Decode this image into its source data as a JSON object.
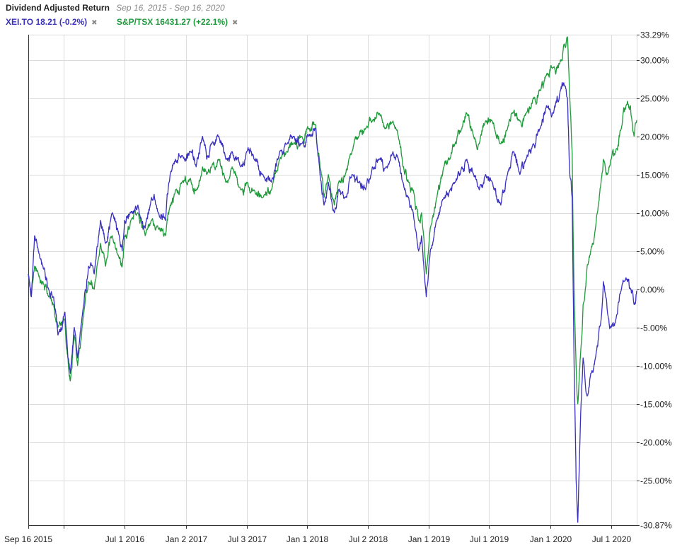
{
  "header": {
    "title": "Dividend Adjusted Return",
    "date_range": "Sep 16, 2015 - Sep 16, 2020",
    "close_icon": "close-x-icon"
  },
  "colors": {
    "xei": "#3a30c0",
    "tsx": "#1f9a3a",
    "grid": "#dcdcdc",
    "axis": "#333333",
    "text": "#222222"
  },
  "chart_data": {
    "type": "line",
    "title": "Dividend Adjusted Return",
    "subtitle": "Sep 16, 2015 - Sep 16, 2020",
    "xlabel": "",
    "ylabel": "",
    "xlim": [
      "2015-09-16",
      "2020-09-16"
    ],
    "ylim": [
      -30.87,
      33.29
    ],
    "grid": true,
    "legend_position": "top-left",
    "x_tick_labels": [
      {
        "date": "2015-09-16",
        "label": "Sep 16 2015"
      },
      {
        "date": "2016-01-01",
        "label": ""
      },
      {
        "date": "2016-07-01",
        "label": "Jul 1 2016"
      },
      {
        "date": "2017-01-02",
        "label": "Jan 2 2017"
      },
      {
        "date": "2017-07-03",
        "label": "Jul 3 2017"
      },
      {
        "date": "2018-01-01",
        "label": "Jan 1 2018"
      },
      {
        "date": "2018-07-02",
        "label": "Jul 2 2018"
      },
      {
        "date": "2019-01-01",
        "label": "Jan 1 2019"
      },
      {
        "date": "2019-07-01",
        "label": "Jul 1 2019"
      },
      {
        "date": "2020-01-01",
        "label": "Jan 1 2020"
      },
      {
        "date": "2020-07-01",
        "label": "Jul 1 2020"
      }
    ],
    "y_tick_labels": [
      {
        "value": 33.29,
        "label": "33.29%"
      },
      {
        "value": 30,
        "label": "30.00%"
      },
      {
        "value": 25,
        "label": "25.00%"
      },
      {
        "value": 20,
        "label": "20.00%"
      },
      {
        "value": 15,
        "label": "15.00%"
      },
      {
        "value": 10,
        "label": "10.00%"
      },
      {
        "value": 5,
        "label": "5.00%"
      },
      {
        "value": 0,
        "label": "0.00%"
      },
      {
        "value": -5,
        "label": "-5.00%"
      },
      {
        "value": -10,
        "label": "-10.00%"
      },
      {
        "value": -15,
        "label": "-15.00%"
      },
      {
        "value": -20,
        "label": "-20.00%"
      },
      {
        "value": -25,
        "label": "-25.00%"
      },
      {
        "value": -30.87,
        "label": "-30.87%"
      }
    ],
    "series": [
      {
        "name": "XEI.TO",
        "legend_label": "XEI.TO 18.21 (-0.2%)",
        "color": "#3a30c0",
        "points": [
          [
            "2015-09-16",
            2
          ],
          [
            "2015-09-25",
            -1
          ],
          [
            "2015-10-05",
            7
          ],
          [
            "2015-10-16",
            5
          ],
          [
            "2015-10-30",
            3
          ],
          [
            "2015-11-16",
            0
          ],
          [
            "2015-12-01",
            -1
          ],
          [
            "2015-12-14",
            -6
          ],
          [
            "2016-01-04",
            -3
          ],
          [
            "2016-01-13",
            -9
          ],
          [
            "2016-01-20",
            -11
          ],
          [
            "2016-02-01",
            -5
          ],
          [
            "2016-02-11",
            -9
          ],
          [
            "2016-03-01",
            -2
          ],
          [
            "2016-03-15",
            3
          ],
          [
            "2016-04-01",
            2
          ],
          [
            "2016-04-20",
            9
          ],
          [
            "2016-05-05",
            6
          ],
          [
            "2016-05-25",
            10
          ],
          [
            "2016-06-15",
            7
          ],
          [
            "2016-06-24",
            5
          ],
          [
            "2016-07-01",
            9
          ],
          [
            "2016-07-20",
            10
          ],
          [
            "2016-08-10",
            11
          ],
          [
            "2016-09-01",
            8
          ],
          [
            "2016-09-20",
            12
          ],
          [
            "2016-10-10",
            10
          ],
          [
            "2016-11-01",
            9
          ],
          [
            "2016-11-15",
            15
          ],
          [
            "2016-12-01",
            17
          ],
          [
            "2016-12-20",
            17.5
          ],
          [
            "2017-01-15",
            18
          ],
          [
            "2017-02-01",
            16
          ],
          [
            "2017-02-20",
            20
          ],
          [
            "2017-03-05",
            17
          ],
          [
            "2017-03-20",
            19
          ],
          [
            "2017-04-10",
            20
          ],
          [
            "2017-05-01",
            17
          ],
          [
            "2017-05-20",
            18
          ],
          [
            "2017-06-15",
            16
          ],
          [
            "2017-07-03",
            18
          ],
          [
            "2017-07-25",
            17
          ],
          [
            "2017-08-20",
            15
          ],
          [
            "2017-09-15",
            14
          ],
          [
            "2017-10-10",
            18
          ],
          [
            "2017-11-01",
            19
          ],
          [
            "2017-11-20",
            20
          ],
          [
            "2017-12-15",
            19
          ],
          [
            "2018-01-05",
            20
          ],
          [
            "2018-01-26",
            21
          ],
          [
            "2018-02-08",
            15
          ],
          [
            "2018-02-20",
            11
          ],
          [
            "2018-03-05",
            14
          ],
          [
            "2018-03-23",
            10
          ],
          [
            "2018-04-05",
            13
          ],
          [
            "2018-04-25",
            12
          ],
          [
            "2018-05-15",
            15
          ],
          [
            "2018-06-05",
            14
          ],
          [
            "2018-06-25",
            13
          ],
          [
            "2018-07-15",
            16
          ],
          [
            "2018-08-05",
            17
          ],
          [
            "2018-08-25",
            16
          ],
          [
            "2018-09-15",
            18
          ],
          [
            "2018-10-01",
            17
          ],
          [
            "2018-10-15",
            14
          ],
          [
            "2018-11-01",
            12
          ],
          [
            "2018-11-15",
            10
          ],
          [
            "2018-12-01",
            5
          ],
          [
            "2018-12-10",
            7
          ],
          [
            "2018-12-24",
            -1
          ],
          [
            "2019-01-05",
            5
          ],
          [
            "2019-01-25",
            9
          ],
          [
            "2019-02-15",
            12
          ],
          [
            "2019-03-05",
            13
          ],
          [
            "2019-03-20",
            14
          ],
          [
            "2019-04-10",
            16
          ],
          [
            "2019-04-25",
            17
          ],
          [
            "2019-05-15",
            15
          ],
          [
            "2019-06-01",
            13
          ],
          [
            "2019-06-20",
            15
          ],
          [
            "2019-07-10",
            14
          ],
          [
            "2019-08-05",
            11
          ],
          [
            "2019-08-25",
            15
          ],
          [
            "2019-09-10",
            18
          ],
          [
            "2019-10-01",
            15
          ],
          [
            "2019-10-20",
            17
          ],
          [
            "2019-11-10",
            19
          ],
          [
            "2019-12-01",
            21
          ],
          [
            "2019-12-20",
            24
          ],
          [
            "2020-01-10",
            23
          ],
          [
            "2020-01-31",
            26
          ],
          [
            "2020-02-10",
            27
          ],
          [
            "2020-02-21",
            25
          ],
          [
            "2020-02-28",
            15
          ],
          [
            "2020-03-06",
            12
          ],
          [
            "2020-03-12",
            -10
          ],
          [
            "2020-03-18",
            -25
          ],
          [
            "2020-03-23",
            -30.5
          ],
          [
            "2020-04-01",
            -16
          ],
          [
            "2020-04-08",
            -9
          ],
          [
            "2020-04-20",
            -14
          ],
          [
            "2020-05-01",
            -11
          ],
          [
            "2020-05-15",
            -9
          ],
          [
            "2020-06-01",
            -4
          ],
          [
            "2020-06-08",
            1
          ],
          [
            "2020-06-20",
            -3
          ],
          [
            "2020-07-01",
            -5
          ],
          [
            "2020-07-15",
            -4
          ],
          [
            "2020-08-01",
            0
          ],
          [
            "2020-08-15",
            1.5
          ],
          [
            "2020-08-28",
            0
          ],
          [
            "2020-09-08",
            -2
          ],
          [
            "2020-09-16",
            -0.2
          ]
        ]
      },
      {
        "name": "S&P/TSX",
        "legend_label": "S&P/TSX 16431.27 (+22.1%)",
        "color": "#1f9a3a",
        "points": [
          [
            "2015-09-16",
            2
          ],
          [
            "2015-09-25",
            -1
          ],
          [
            "2015-10-05",
            3
          ],
          [
            "2015-10-16",
            2
          ],
          [
            "2015-10-30",
            1
          ],
          [
            "2015-11-16",
            -1
          ],
          [
            "2015-12-01",
            -2
          ],
          [
            "2015-12-14",
            -5
          ],
          [
            "2016-01-04",
            -4
          ],
          [
            "2016-01-13",
            -9
          ],
          [
            "2016-01-20",
            -12
          ],
          [
            "2016-02-01",
            -6
          ],
          [
            "2016-02-11",
            -10
          ],
          [
            "2016-03-01",
            -3
          ],
          [
            "2016-03-15",
            1
          ],
          [
            "2016-04-01",
            0
          ],
          [
            "2016-04-20",
            6
          ],
          [
            "2016-05-05",
            3
          ],
          [
            "2016-05-25",
            7
          ],
          [
            "2016-06-15",
            4
          ],
          [
            "2016-06-24",
            3
          ],
          [
            "2016-07-01",
            7
          ],
          [
            "2016-07-20",
            9
          ],
          [
            "2016-08-10",
            10
          ],
          [
            "2016-09-01",
            7
          ],
          [
            "2016-09-20",
            9
          ],
          [
            "2016-10-10",
            8
          ],
          [
            "2016-11-01",
            7
          ],
          [
            "2016-11-15",
            11
          ],
          [
            "2016-12-01",
            13
          ],
          [
            "2016-12-20",
            14
          ],
          [
            "2017-01-15",
            14.5
          ],
          [
            "2017-02-01",
            13
          ],
          [
            "2017-02-20",
            16
          ],
          [
            "2017-03-05",
            15
          ],
          [
            "2017-03-20",
            16
          ],
          [
            "2017-04-10",
            17
          ],
          [
            "2017-05-01",
            14
          ],
          [
            "2017-05-20",
            16
          ],
          [
            "2017-06-15",
            13
          ],
          [
            "2017-07-03",
            14
          ],
          [
            "2017-07-25",
            13
          ],
          [
            "2017-08-20",
            12
          ],
          [
            "2017-09-15",
            13
          ],
          [
            "2017-10-10",
            17
          ],
          [
            "2017-11-01",
            18
          ],
          [
            "2017-11-20",
            19
          ],
          [
            "2017-12-15",
            20
          ],
          [
            "2018-01-05",
            21
          ],
          [
            "2018-01-26",
            21.5
          ],
          [
            "2018-02-08",
            16
          ],
          [
            "2018-02-20",
            12
          ],
          [
            "2018-03-05",
            15
          ],
          [
            "2018-03-23",
            11
          ],
          [
            "2018-04-05",
            14
          ],
          [
            "2018-04-25",
            15
          ],
          [
            "2018-05-15",
            18
          ],
          [
            "2018-06-05",
            20
          ],
          [
            "2018-06-25",
            21
          ],
          [
            "2018-07-15",
            22
          ],
          [
            "2018-08-05",
            23
          ],
          [
            "2018-08-25",
            21
          ],
          [
            "2018-09-15",
            22
          ],
          [
            "2018-10-01",
            20
          ],
          [
            "2018-10-15",
            16
          ],
          [
            "2018-11-01",
            14
          ],
          [
            "2018-11-15",
            13
          ],
          [
            "2018-12-01",
            9
          ],
          [
            "2018-12-10",
            10
          ],
          [
            "2018-12-24",
            2
          ],
          [
            "2019-01-05",
            8
          ],
          [
            "2019-01-25",
            12
          ],
          [
            "2019-02-15",
            16
          ],
          [
            "2019-03-05",
            17
          ],
          [
            "2019-03-20",
            19
          ],
          [
            "2019-04-10",
            21
          ],
          [
            "2019-04-25",
            23
          ],
          [
            "2019-05-15",
            20
          ],
          [
            "2019-06-01",
            19
          ],
          [
            "2019-06-20",
            22
          ],
          [
            "2019-07-10",
            22
          ],
          [
            "2019-08-05",
            19
          ],
          [
            "2019-08-25",
            21
          ],
          [
            "2019-09-10",
            23
          ],
          [
            "2019-10-01",
            22
          ],
          [
            "2019-10-20",
            23
          ],
          [
            "2019-11-10",
            25
          ],
          [
            "2019-12-01",
            26
          ],
          [
            "2019-12-20",
            28
          ],
          [
            "2020-01-10",
            29
          ],
          [
            "2020-01-31",
            30
          ],
          [
            "2020-02-10",
            32
          ],
          [
            "2020-02-21",
            33
          ],
          [
            "2020-02-28",
            25
          ],
          [
            "2020-03-06",
            18
          ],
          [
            "2020-03-12",
            0
          ],
          [
            "2020-03-18",
            -10
          ],
          [
            "2020-03-23",
            -15
          ],
          [
            "2020-04-01",
            -8
          ],
          [
            "2020-04-08",
            -2
          ],
          [
            "2020-04-20",
            3
          ],
          [
            "2020-05-01",
            5
          ],
          [
            "2020-05-15",
            8
          ],
          [
            "2020-06-01",
            14
          ],
          [
            "2020-06-08",
            17
          ],
          [
            "2020-06-20",
            15
          ],
          [
            "2020-07-01",
            17
          ],
          [
            "2020-07-15",
            18
          ],
          [
            "2020-08-01",
            21
          ],
          [
            "2020-08-15",
            24
          ],
          [
            "2020-08-28",
            24
          ],
          [
            "2020-09-08",
            20
          ],
          [
            "2020-09-16",
            22.1
          ]
        ]
      }
    ]
  }
}
